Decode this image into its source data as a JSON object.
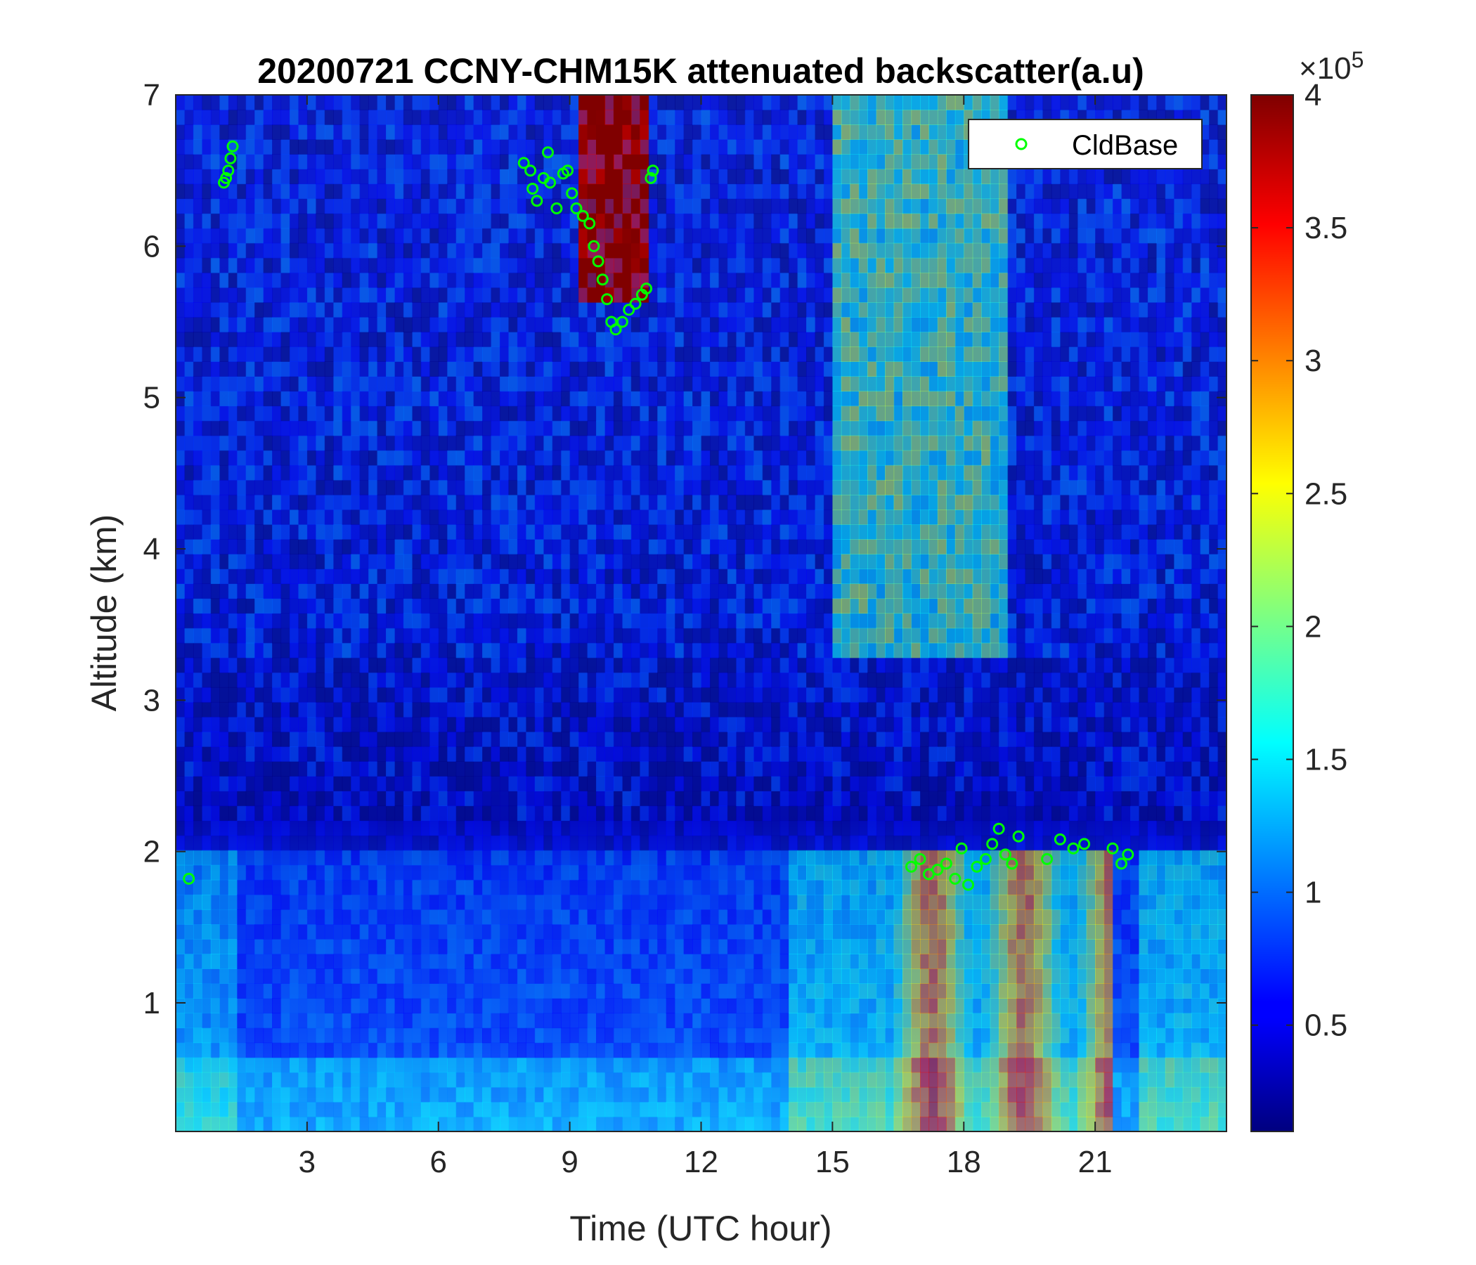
{
  "chart_data": {
    "type": "heatmap",
    "title": "20200721 CCNY-CHM15K attenuated backscatter(a.u)",
    "xlabel": "Time (UTC hour)",
    "ylabel": "Altitude (km)",
    "xlim": [
      0,
      24
    ],
    "ylim": [
      0.15,
      7
    ],
    "xticks": [
      3,
      6,
      9,
      12,
      15,
      18,
      21
    ],
    "yticks": [
      1,
      2,
      3,
      4,
      5,
      6,
      7
    ],
    "colormap": "jet",
    "colorbar": {
      "clim": [
        0.1,
        4
      ],
      "ticks": [
        0.5,
        1,
        1.5,
        2,
        2.5,
        3,
        3.5,
        4
      ],
      "multiplier_base": "×10",
      "multiplier_exp": "5"
    },
    "legend": {
      "entries": [
        "CldBase"
      ],
      "location": "top-right",
      "marker_color": "#00ff00"
    },
    "series": [
      {
        "name": "CldBase",
        "marker": "circle",
        "points": [
          [
            1.1,
            6.42
          ],
          [
            1.15,
            6.45
          ],
          [
            1.2,
            6.5
          ],
          [
            1.25,
            6.58
          ],
          [
            1.3,
            6.66
          ],
          [
            0.3,
            1.82
          ],
          [
            7.95,
            6.55
          ],
          [
            8.1,
            6.5
          ],
          [
            8.15,
            6.38
          ],
          [
            8.25,
            6.3
          ],
          [
            8.4,
            6.45
          ],
          [
            8.5,
            6.62
          ],
          [
            8.55,
            6.42
          ],
          [
            8.7,
            6.25
          ],
          [
            8.85,
            6.48
          ],
          [
            8.95,
            6.5
          ],
          [
            9.05,
            6.35
          ],
          [
            9.15,
            6.25
          ],
          [
            9.3,
            6.2
          ],
          [
            9.45,
            6.15
          ],
          [
            9.55,
            6.0
          ],
          [
            9.65,
            5.9
          ],
          [
            9.75,
            5.78
          ],
          [
            9.85,
            5.65
          ],
          [
            9.95,
            5.5
          ],
          [
            10.05,
            5.45
          ],
          [
            10.2,
            5.5
          ],
          [
            10.35,
            5.58
          ],
          [
            10.5,
            5.62
          ],
          [
            10.65,
            5.68
          ],
          [
            10.75,
            5.72
          ],
          [
            10.85,
            6.45
          ],
          [
            10.9,
            6.5
          ],
          [
            16.8,
            1.9
          ],
          [
            17.0,
            1.95
          ],
          [
            17.2,
            1.85
          ],
          [
            17.4,
            1.88
          ],
          [
            17.6,
            1.92
          ],
          [
            17.8,
            1.82
          ],
          [
            17.95,
            2.02
          ],
          [
            18.1,
            1.78
          ],
          [
            18.3,
            1.9
          ],
          [
            18.5,
            1.95
          ],
          [
            18.65,
            2.05
          ],
          [
            18.8,
            2.15
          ],
          [
            18.95,
            1.98
          ],
          [
            19.1,
            1.92
          ],
          [
            19.25,
            2.1
          ],
          [
            19.9,
            1.95
          ],
          [
            20.2,
            2.08
          ],
          [
            20.5,
            2.02
          ],
          [
            20.75,
            2.05
          ],
          [
            21.4,
            2.02
          ],
          [
            21.6,
            1.92
          ],
          [
            21.75,
            1.98
          ]
        ]
      }
    ]
  }
}
